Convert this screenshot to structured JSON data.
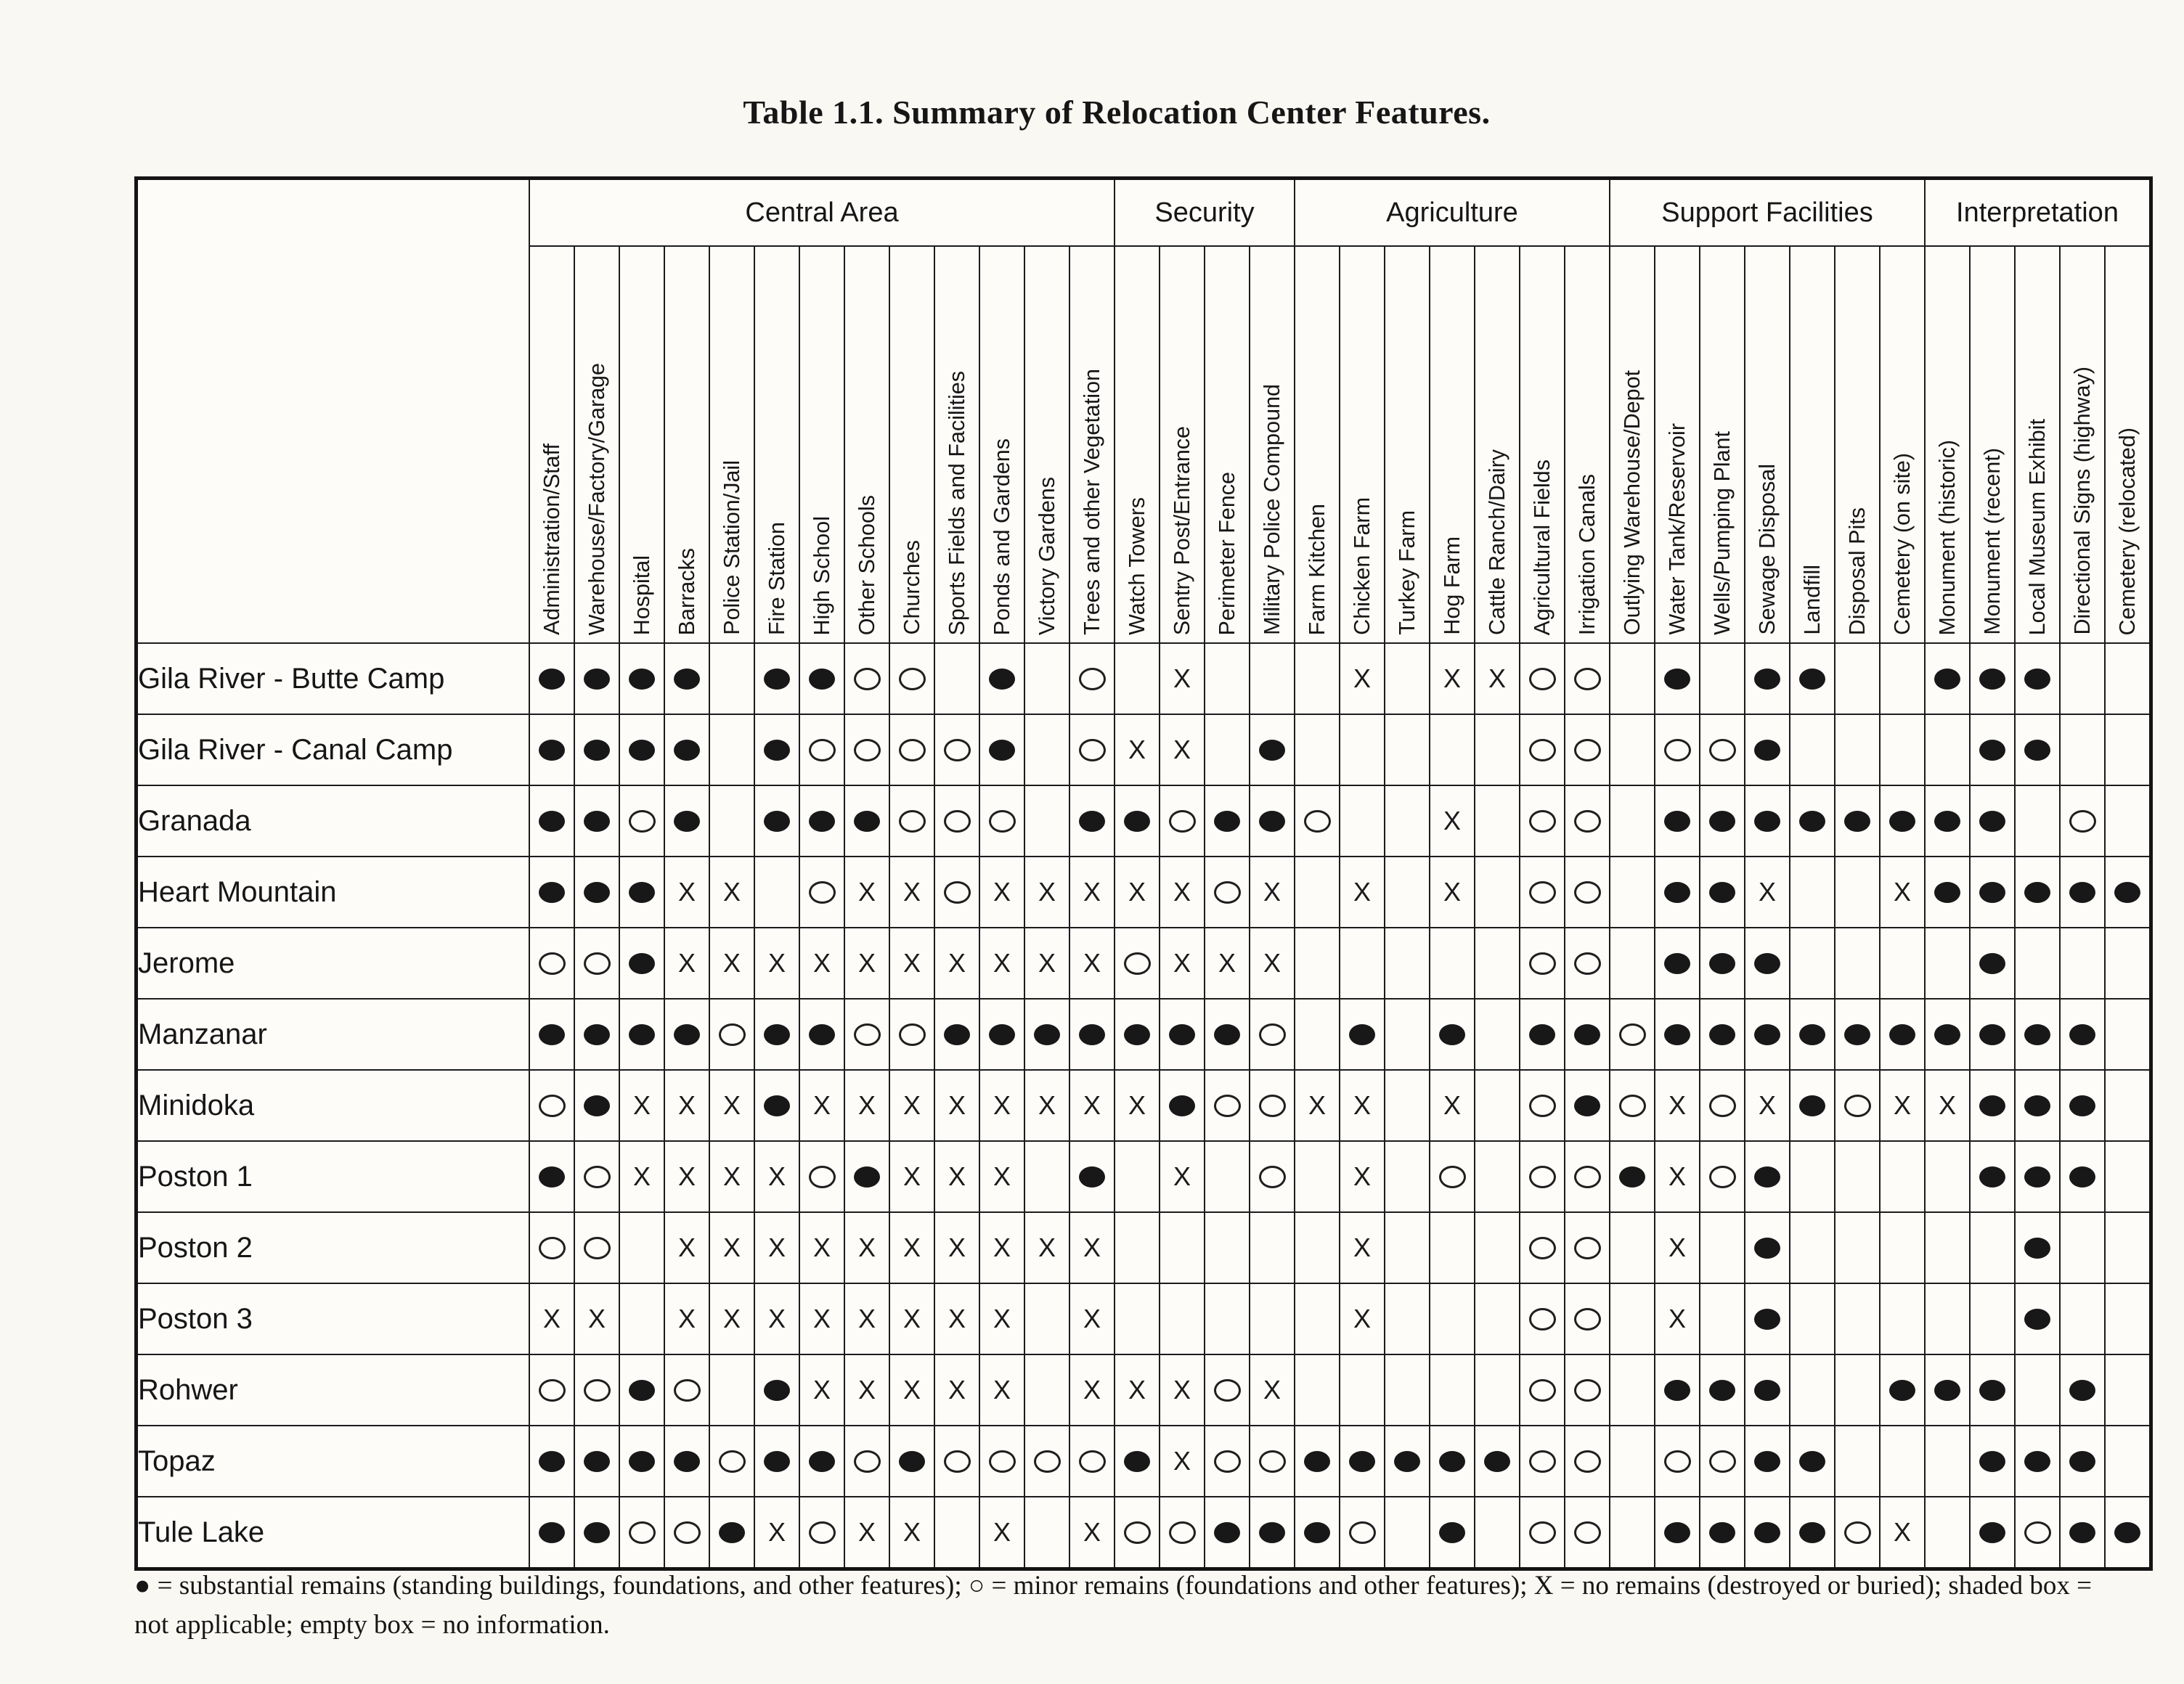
{
  "title": "Table 1.1. Summary of Relocation Center Features.",
  "legend_text": "● = substantial remains (standing buildings, foundations, and other features); ○ = minor remains (foundations and other features); X = no remains (destroyed or buried); shaded box = not applicable; empty box = no information.",
  "symbol_meanings": {
    "F": "filled-circle substantial remains",
    "O": "open-circle minor remains",
    "X": "x-mark no remains",
    "S": "shaded not applicable",
    "": "empty no information"
  },
  "groups": [
    {
      "label": "Central Area",
      "span": 13
    },
    {
      "label": "Security",
      "span": 4
    },
    {
      "label": "Agriculture",
      "span": 7
    },
    {
      "label": "Support Facilities",
      "span": 7
    },
    {
      "label": "Interpretation",
      "span": 5
    }
  ],
  "columns": [
    "Administration/Staff",
    "Warehouse/Factory/Garage",
    "Hospital",
    "Barracks",
    "Police Station/Jail",
    "Fire Station",
    "High School",
    "Other Schools",
    "Churches",
    "Sports Fields and Facilities",
    "Ponds and Gardens",
    "Victory Gardens",
    "Trees and other Vegetation",
    "Watch Towers",
    "Sentry Post/Entrance",
    "Perimeter Fence",
    "Military Police Compound",
    "Farm Kitchen",
    "Chicken Farm",
    "Turkey Farm",
    "Hog Farm",
    "Cattle Ranch/Dairy",
    "Agricultural Fields",
    "Irrigation Canals",
    "Outlying Warehouse/Depot",
    "Water Tank/Reservoir",
    "Wells/Pumping Plant",
    "Sewage Disposal",
    "Landfill",
    "Disposal Pits",
    "Cemetery (on site)",
    "Monument (historic)",
    "Monument (recent)",
    "Local Museum Exhibit",
    "Directional Signs (highway)",
    "Cemetery (relocated)"
  ],
  "rows": [
    {
      "label": "Gila River - Butte Camp",
      "cells": [
        "F",
        "F",
        "F",
        "F",
        "",
        "F",
        "F",
        "O",
        "O",
        "",
        "F",
        "",
        "O",
        "",
        "X",
        "",
        "",
        "",
        "X",
        "S",
        "X",
        "X",
        "O",
        "O",
        "S",
        "F",
        "",
        "F",
        "F",
        "",
        "S",
        "F",
        "F",
        "F",
        "",
        "S"
      ]
    },
    {
      "label": "Gila River - Canal Camp",
      "cells": [
        "F",
        "F",
        "F",
        "F",
        "",
        "F",
        "O",
        "O",
        "O",
        "O",
        "F",
        "",
        "O",
        "X",
        "X",
        "",
        "F",
        "",
        "S",
        "S",
        "S",
        "S",
        "O",
        "O",
        "",
        "O",
        "O",
        "F",
        "S",
        "",
        "S",
        "",
        "F",
        "F",
        "",
        "S"
      ]
    },
    {
      "label": "Granada",
      "cells": [
        "F",
        "F",
        "O",
        "F",
        "",
        "F",
        "F",
        "F",
        "O",
        "O",
        "O",
        "",
        "F",
        "F",
        "O",
        "F",
        "F",
        "O",
        "",
        "",
        "X",
        "",
        "O",
        "O",
        "",
        "F",
        "F",
        "F",
        "F",
        "F",
        "F",
        "F",
        "F",
        "",
        "O",
        "S"
      ]
    },
    {
      "label": "Heart Mountain",
      "cells": [
        "F",
        "F",
        "F",
        "X",
        "X",
        "",
        "O",
        "X",
        "X",
        "O",
        "X",
        "X",
        "X",
        "X",
        "X",
        "O",
        "X",
        "",
        "X",
        "S",
        "X",
        "",
        "O",
        "O",
        "",
        "F",
        "F",
        "X",
        "",
        "",
        "X",
        "F",
        "F",
        "F",
        "F",
        "F"
      ]
    },
    {
      "label": "Jerome",
      "cells": [
        "O",
        "O",
        "F",
        "X",
        "X",
        "X",
        "X",
        "X",
        "X",
        "X",
        "X",
        "X",
        "X",
        "O",
        "X",
        "X",
        "X",
        "",
        "S",
        "S",
        "S",
        "S",
        "O",
        "O",
        "",
        "F",
        "F",
        "F",
        "",
        "",
        "S",
        "",
        "F",
        "",
        "",
        "S"
      ]
    },
    {
      "label": "Manzanar",
      "cells": [
        "F",
        "F",
        "F",
        "F",
        "O",
        "F",
        "F",
        "O",
        "O",
        "F",
        "F",
        "F",
        "F",
        "F",
        "F",
        "F",
        "O",
        "",
        "F",
        "S",
        "F",
        "",
        "F",
        "F",
        "O",
        "F",
        "F",
        "F",
        "F",
        "F",
        "F",
        "F",
        "F",
        "F",
        "F",
        ""
      ]
    },
    {
      "label": "Minidoka",
      "cells": [
        "O",
        "F",
        "X",
        "X",
        "X",
        "F",
        "X",
        "X",
        "X",
        "X",
        "X",
        "X",
        "X",
        "X",
        "F",
        "O",
        "O",
        "X",
        "X",
        "S",
        "X",
        "S",
        "O",
        "F",
        "O",
        "X",
        "O",
        "X",
        "F",
        "O",
        "X",
        "X",
        "F",
        "F",
        "F",
        ""
      ]
    },
    {
      "label": "Poston 1",
      "cells": [
        "F",
        "O",
        "X",
        "X",
        "X",
        "X",
        "O",
        "F",
        "X",
        "X",
        "X",
        "",
        "F",
        "",
        "X",
        "",
        "O",
        "",
        "X",
        "S",
        "O",
        "S",
        "O",
        "O",
        "F",
        "X",
        "O",
        "F",
        "S",
        "S",
        "S",
        "S",
        "F",
        "F",
        "F",
        ""
      ]
    },
    {
      "label": "Poston 2",
      "cells": [
        "O",
        "O",
        "S",
        "X",
        "X",
        "X",
        "X",
        "X",
        "X",
        "X",
        "X",
        "X",
        "X",
        "S",
        "S",
        "S",
        "S",
        "S",
        "X",
        "S",
        "S",
        "S",
        "O",
        "O",
        "",
        "X",
        "",
        "F",
        "S",
        "S",
        "S",
        "",
        "",
        "F",
        "",
        ""
      ]
    },
    {
      "label": "Poston 3",
      "cells": [
        "X",
        "X",
        "S",
        "X",
        "X",
        "X",
        "X",
        "X",
        "X",
        "X",
        "X",
        "",
        "X",
        "S",
        "S",
        "S",
        "S",
        "S",
        "X",
        "S",
        "S",
        "S",
        "O",
        "O",
        "",
        "X",
        "",
        "F",
        "S",
        "S",
        "S",
        "",
        "",
        "F",
        "",
        ""
      ]
    },
    {
      "label": "Rohwer",
      "cells": [
        "O",
        "O",
        "F",
        "O",
        "",
        "F",
        "X",
        "X",
        "X",
        "X",
        "X",
        "",
        "X",
        "X",
        "X",
        "O",
        "X",
        "",
        "",
        "S",
        "",
        "S",
        "O",
        "O",
        "",
        "F",
        "F",
        "F",
        "",
        "",
        "F",
        "F",
        "F",
        "",
        "F",
        "S"
      ]
    },
    {
      "label": "Topaz",
      "cells": [
        "F",
        "F",
        "F",
        "F",
        "O",
        "F",
        "F",
        "O",
        "F",
        "O",
        "O",
        "O",
        "O",
        "F",
        "X",
        "O",
        "O",
        "F",
        "F",
        "F",
        "F",
        "F",
        "O",
        "O",
        "",
        "O",
        "O",
        "F",
        "F",
        "",
        "S",
        "",
        "F",
        "F",
        "F",
        "S"
      ]
    },
    {
      "label": "Tule Lake",
      "cells": [
        "F",
        "F",
        "O",
        "O",
        "F",
        "X",
        "O",
        "X",
        "X",
        "",
        "X",
        "",
        "X",
        "O",
        "O",
        "F",
        "F",
        "F",
        "O",
        "S",
        "F",
        "",
        "O",
        "O",
        "",
        "F",
        "F",
        "F",
        "F",
        "O",
        "X",
        "",
        "F",
        "O",
        "F",
        "F"
      ]
    }
  ]
}
